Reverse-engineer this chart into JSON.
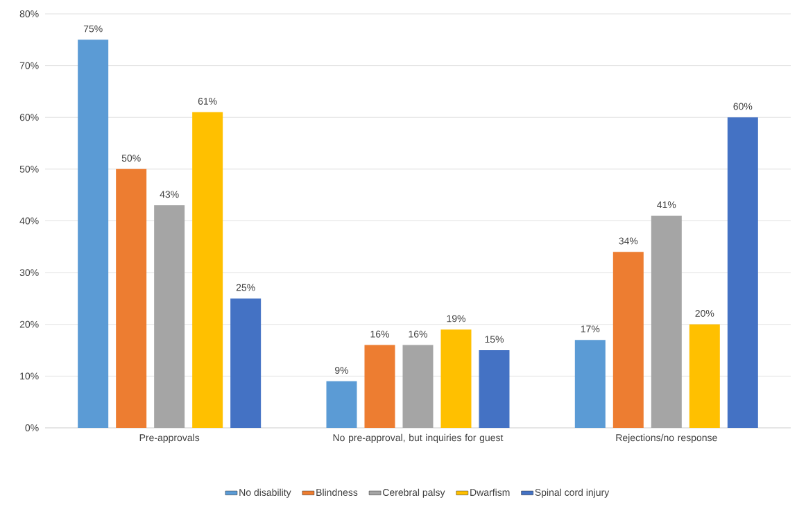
{
  "chart_data": {
    "type": "bar",
    "categories": [
      "Pre-approvals",
      "No pre-approval, but inquiries for guest",
      "Rejections/no response"
    ],
    "series": [
      {
        "name": "No disability",
        "color": "#5b9bd5",
        "values": [
          75,
          9,
          17
        ],
        "value_labels": [
          "75%",
          "9%",
          "17%"
        ]
      },
      {
        "name": "Blindness",
        "color": "#ed7d31",
        "values": [
          50,
          16,
          34
        ],
        "value_labels": [
          "50%",
          "16%",
          "34%"
        ]
      },
      {
        "name": "Cerebral palsy",
        "color": "#a5a5a5",
        "values": [
          43,
          16,
          41
        ],
        "value_labels": [
          "43%",
          "16%",
          "41%"
        ]
      },
      {
        "name": "Dwarfism",
        "color": "#ffc000",
        "values": [
          61,
          19,
          20
        ],
        "value_labels": [
          "61%",
          "19%",
          "20%"
        ]
      },
      {
        "name": "Spinal cord injury",
        "color": "#4472c4",
        "values": [
          25,
          15,
          60
        ],
        "value_labels": [
          "25%",
          "15%",
          "60%"
        ]
      }
    ],
    "ylim": [
      0,
      80
    ],
    "yticks": [
      {
        "value": 0,
        "label": "0%"
      },
      {
        "value": 10,
        "label": "10%"
      },
      {
        "value": 20,
        "label": "20%"
      },
      {
        "value": 30,
        "label": "30%"
      },
      {
        "value": 40,
        "label": "40%"
      },
      {
        "value": 50,
        "label": "50%"
      },
      {
        "value": 60,
        "label": "60%"
      },
      {
        "value": 70,
        "label": "70%"
      },
      {
        "value": 80,
        "label": "80%"
      }
    ],
    "grid": "y",
    "legend": "bottom"
  }
}
